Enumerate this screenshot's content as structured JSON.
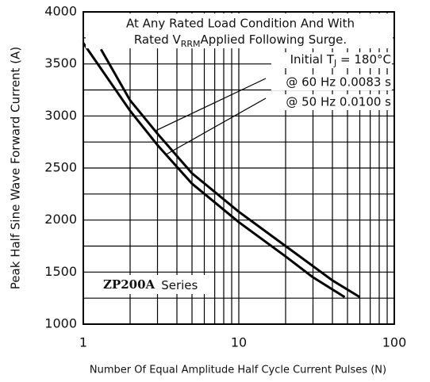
{
  "chart_data": {
    "type": "line",
    "x_label": "Number Of Equal Amplitude Half Cycle Current Pulses (N)",
    "y_label": "Peak Half Sine Wave Forward Current (A)",
    "annotations": {
      "line1": "At Any Rated Load Condition And With",
      "line2a": "Rated V",
      "line2sub": "RRM",
      "line2b": "Applied Following Surge.",
      "temp_a": "Initial T",
      "temp_sub": "J",
      "temp_b": " = 180°C",
      "part": "ZP200A",
      "part_suffix": "Series"
    },
    "x_log": true,
    "xlim": [
      1,
      100
    ],
    "xticks": [
      1,
      10,
      100
    ],
    "x_minor_ticks": [
      2,
      3,
      4,
      5,
      6,
      7,
      8,
      9,
      20,
      30,
      40,
      50,
      60,
      70,
      80,
      90
    ],
    "ylim": [
      1000,
      4000
    ],
    "yticks": [
      1000,
      1500,
      2000,
      2500,
      3000,
      3500,
      4000
    ],
    "y_minor_ticks": [
      1250,
      1750,
      2250,
      2750,
      3250,
      3750
    ],
    "grid": true,
    "series": [
      {
        "name": "@ 60 Hz 0.0083 s",
        "color": "#000000",
        "x": [
          1.3,
          2,
          3,
          5,
          10,
          20,
          40,
          60
        ],
        "values": [
          3640,
          3150,
          2830,
          2450,
          2080,
          1750,
          1420,
          1260
        ]
      },
      {
        "name": "@ 50 Hz 0.0100 s",
        "color": "#000000",
        "x": [
          1,
          2,
          3,
          5,
          10,
          20,
          30,
          48
        ],
        "values": [
          3700,
          3050,
          2720,
          2350,
          1980,
          1650,
          1450,
          1260
        ]
      }
    ]
  }
}
